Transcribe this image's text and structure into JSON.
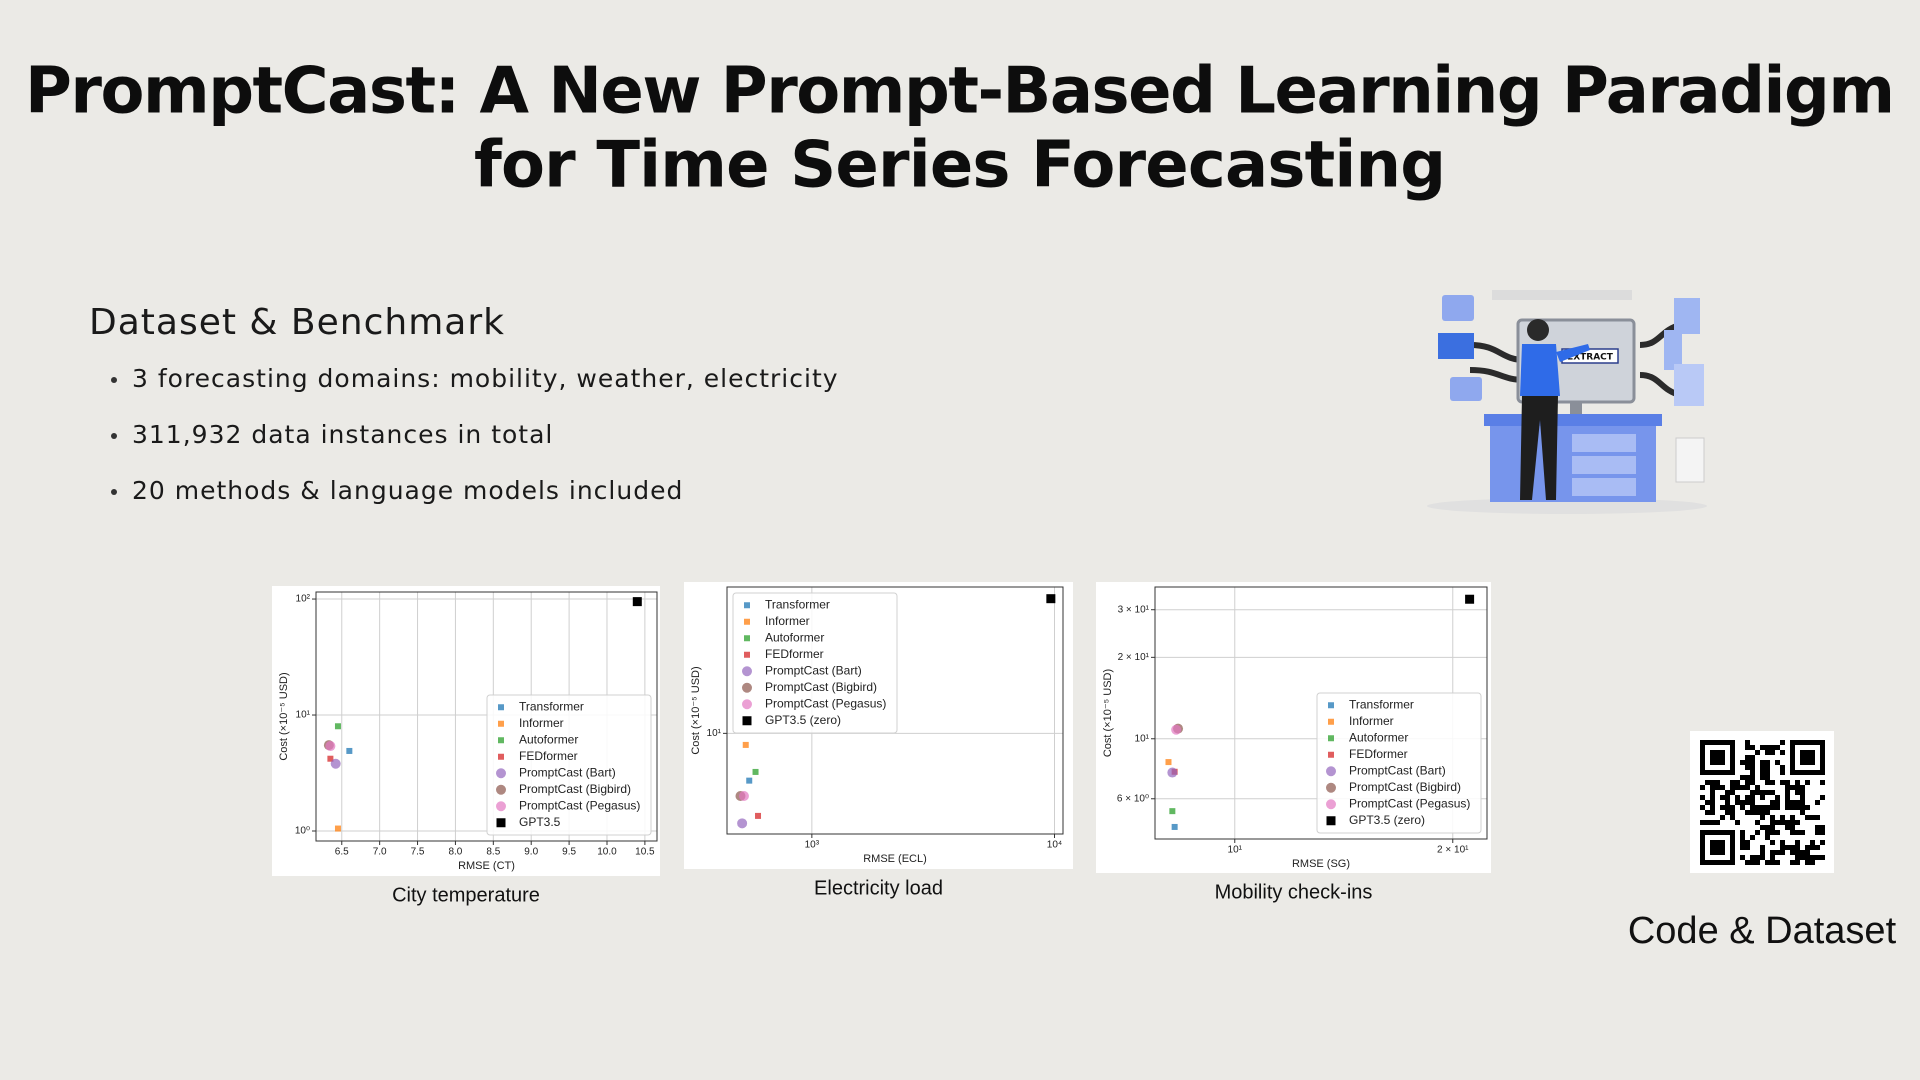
{
  "slide": {
    "title_lines": [
      "PromptCast: A New Prompt-Based Learning Paradigm",
      "for Time Series Forecasting"
    ],
    "section_heading": "Dataset & Benchmark",
    "bullets": [
      "3 forecasting domains: mobility, weather, electricity",
      "311,932 data instances in total",
      "20 methods & language models included"
    ],
    "illustration_label": "EXTRACT",
    "qr_caption": "Code & Dataset"
  },
  "chart_data": [
    {
      "type": "scatter",
      "caption": "City temperature",
      "x_label": "RMSE (CT)",
      "y_label": "Cost (×10⁻⁵ USD)",
      "xscale": "linear",
      "yscale": "log",
      "grid": true,
      "legend": "lower right",
      "xlim": [
        6.16,
        10.66
      ],
      "ylim": [
        0.82,
        115
      ],
      "xticks": [
        6.5,
        {
          "value": 7,
          "label": "7.0"
        },
        7.5,
        {
          "value": 8,
          "label": "8.0"
        },
        8.5,
        {
          "value": 9,
          "label": "9.0"
        },
        9.5,
        {
          "value": 10,
          "label": "10.0"
        },
        10.5
      ],
      "yticks": [
        {
          "value": 1,
          "label": "10⁰"
        },
        {
          "value": 10,
          "label": "10¹"
        },
        {
          "value": 100,
          "label": "10²"
        }
      ],
      "series": [
        {
          "name": "Transformer",
          "color": "#1f77b4",
          "marker": "square",
          "x": [
            6.6
          ],
          "values": [
            4.9
          ]
        },
        {
          "name": "Informer",
          "color": "#ff7f0e",
          "marker": "square",
          "x": [
            6.45
          ],
          "values": [
            1.05
          ]
        },
        {
          "name": "Autoformer",
          "color": "#2ca02c",
          "marker": "square",
          "x": [
            6.45
          ],
          "values": [
            8
          ]
        },
        {
          "name": "FEDformer",
          "color": "#d62728",
          "marker": "square",
          "x": [
            6.35
          ],
          "values": [
            4.2
          ]
        },
        {
          "name": "PromptCast (Bart)",
          "color": "#9467bd",
          "marker": "circle",
          "x": [
            6.42
          ],
          "values": [
            3.8
          ]
        },
        {
          "name": "PromptCast (Bigbird)",
          "color": "#8c564b",
          "marker": "circle",
          "x": [
            6.33
          ],
          "values": [
            5.5
          ]
        },
        {
          "name": "PromptCast (Pegasus)",
          "color": "#e377c2",
          "marker": "circle",
          "x": [
            6.35
          ],
          "values": [
            5.4
          ]
        },
        {
          "name": "GPT3.5",
          "color": "#000000",
          "marker": "big-square",
          "x": [
            10.4
          ],
          "values": [
            95
          ]
        }
      ]
    },
    {
      "type": "scatter",
      "caption": "Electricity load",
      "x_label": "RMSE (ECL)",
      "y_label": "Cost (×10⁻⁵ USD)",
      "xscale": "log",
      "yscale": "log",
      "grid": true,
      "legend": "upper left",
      "xlim": [
        447,
        10840
      ],
      "ylim": [
        4.4,
        33
      ],
      "xticks": [
        {
          "value": 1000,
          "label": "10³"
        },
        {
          "value": 10000,
          "label": "10⁴"
        }
      ],
      "yticks": [
        {
          "value": 10,
          "label": "10¹"
        }
      ],
      "series": [
        {
          "name": "Transformer",
          "color": "#1f77b4",
          "marker": "square",
          "x": [
            552
          ],
          "values": [
            6.8
          ]
        },
        {
          "name": "Informer",
          "color": "#ff7f0e",
          "marker": "square",
          "x": [
            534
          ],
          "values": [
            9.1
          ]
        },
        {
          "name": "Autoformer",
          "color": "#2ca02c",
          "marker": "square",
          "x": [
            586
          ],
          "values": [
            7.3
          ]
        },
        {
          "name": "FEDformer",
          "color": "#d62728",
          "marker": "square",
          "x": [
            600
          ],
          "values": [
            5.1
          ]
        },
        {
          "name": "PromptCast (Bart)",
          "color": "#9467bd",
          "marker": "circle",
          "x": [
            516
          ],
          "values": [
            4.8
          ]
        },
        {
          "name": "PromptCast (Bigbird)",
          "color": "#8c564b",
          "marker": "circle",
          "x": [
            508
          ],
          "values": [
            6.0
          ]
        },
        {
          "name": "PromptCast (Pegasus)",
          "color": "#e377c2",
          "marker": "circle",
          "x": [
            525
          ],
          "values": [
            6.0
          ]
        },
        {
          "name": "GPT3.5 (zero)",
          "color": "#000000",
          "marker": "big-square",
          "x": [
            9660
          ],
          "values": [
            30
          ]
        }
      ]
    },
    {
      "type": "scatter",
      "caption": "Mobility check-ins",
      "x_label": "RMSE (SG)",
      "y_label": "Cost (×10⁻⁵ USD)",
      "xscale": "log",
      "yscale": "log",
      "grid": true,
      "legend": "lower right",
      "xlim": [
        7.76,
        22.3
      ],
      "ylim": [
        4.26,
        36.4
      ],
      "xticks": [
        {
          "value": 10,
          "label": "10¹"
        },
        {
          "value": 20,
          "label": "2 × 10¹"
        }
      ],
      "yticks": [
        {
          "value": 6,
          "label": "6 × 10⁰"
        },
        {
          "value": 10,
          "label": "10¹"
        },
        {
          "value": 20,
          "label": "2 × 10¹"
        },
        {
          "value": 30,
          "label": "3 × 10¹"
        }
      ],
      "series": [
        {
          "name": "Transformer",
          "color": "#1f77b4",
          "marker": "square",
          "x": [
            8.26
          ],
          "values": [
            4.72
          ]
        },
        {
          "name": "Informer",
          "color": "#ff7f0e",
          "marker": "square",
          "x": [
            8.1
          ],
          "values": [
            8.2
          ]
        },
        {
          "name": "Autoformer",
          "color": "#2ca02c",
          "marker": "square",
          "x": [
            8.2
          ],
          "values": [
            5.4
          ]
        },
        {
          "name": "FEDformer",
          "color": "#d62728",
          "marker": "square",
          "x": [
            8.26
          ],
          "values": [
            7.55
          ]
        },
        {
          "name": "PromptCast (Bart)",
          "color": "#9467bd",
          "marker": "circle",
          "x": [
            8.2
          ],
          "values": [
            7.5
          ]
        },
        {
          "name": "PromptCast (Bigbird)",
          "color": "#8c564b",
          "marker": "circle",
          "x": [
            8.35
          ],
          "values": [
            10.9
          ]
        },
        {
          "name": "PromptCast (Pegasus)",
          "color": "#e377c2",
          "marker": "circle",
          "x": [
            8.3
          ],
          "values": [
            10.8
          ]
        },
        {
          "name": "GPT3.5 (zero)",
          "color": "#000000",
          "marker": "big-square",
          "x": [
            21.1
          ],
          "values": [
            32.8
          ]
        }
      ]
    }
  ]
}
